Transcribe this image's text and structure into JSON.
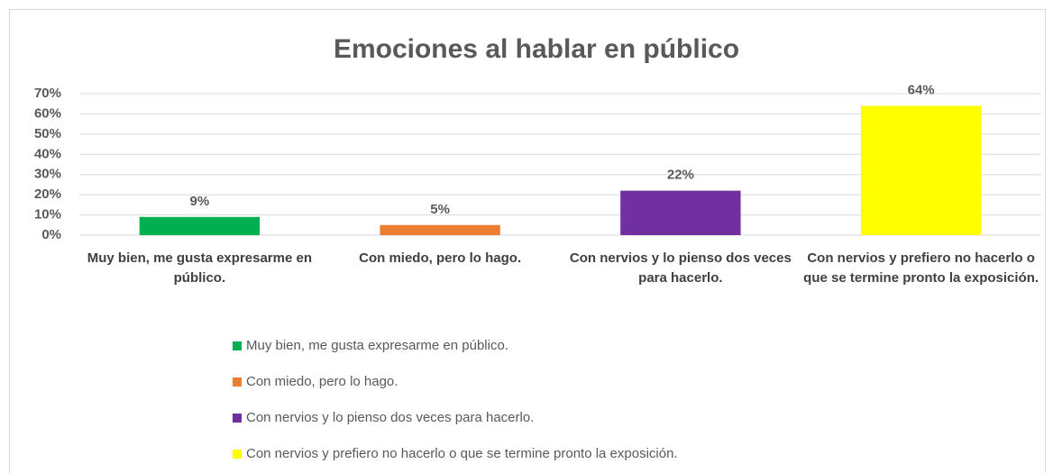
{
  "chart_data": {
    "type": "bar",
    "title": "Emociones al hablar en público",
    "categories": [
      "Muy bien, me gusta expresarme en público.",
      "Con miedo, pero lo hago.",
      "Con nervios y lo pienso dos veces para hacerlo.",
      "Con nervios y prefiero no hacerlo o que se termine pronto la exposición."
    ],
    "values": [
      9,
      5,
      22,
      64
    ],
    "value_labels": [
      "9%",
      "5%",
      "22%",
      "64%"
    ],
    "colors": [
      "#00b050",
      "#ed7d31",
      "#7030a0",
      "#ffff00"
    ],
    "ylim": [
      0,
      70
    ],
    "yticks": [
      {
        "value": 0,
        "label": "0%"
      },
      {
        "value": 10,
        "label": "10%"
      },
      {
        "value": 20,
        "label": "20%"
      },
      {
        "value": 30,
        "label": "30%"
      },
      {
        "value": 40,
        "label": "40%"
      },
      {
        "value": 50,
        "label": "50%"
      },
      {
        "value": 60,
        "label": "60%"
      },
      {
        "value": 70,
        "label": "70%"
      }
    ],
    "grid": true,
    "legend": "bottom"
  }
}
